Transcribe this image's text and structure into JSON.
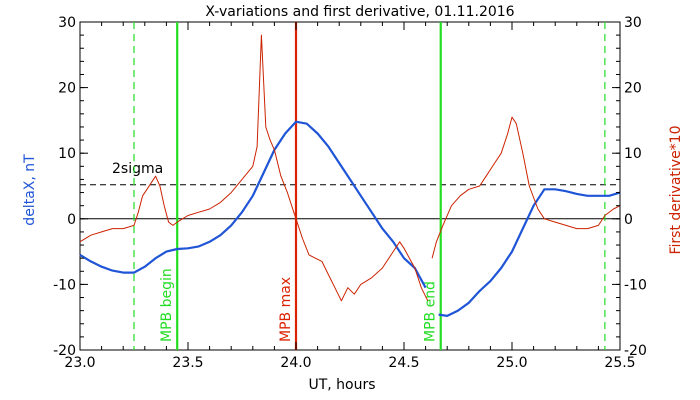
{
  "colors": {
    "background": "#ffffff",
    "axis": "#000000",
    "deltax": "#1f55d6",
    "derivative": "#cc2200",
    "mpb": "#22dd22",
    "mpb_max": "#dd2200"
  },
  "chart_data": {
    "type": "line",
    "title": "X-variations and first derivative, 01.11.2016",
    "xlabel": "UT, hours",
    "ylabel_left": "deltaX, nT",
    "ylabel_right": "First derivative*10",
    "xlim": [
      23.0,
      25.5
    ],
    "ylim": [
      -20,
      30
    ],
    "x_ticks": [
      "23.0",
      "23.5",
      "24.0",
      "24.5",
      "25.0",
      "25.5"
    ],
    "y_ticks": [
      "30",
      "20",
      "10",
      "0",
      "-10",
      "-20"
    ],
    "y_ticks_right": [
      "30",
      "20",
      "10",
      "0",
      "-10",
      "-20"
    ],
    "grid": false,
    "zero_line": 0,
    "threshold": {
      "label": "2sigma",
      "value": 5.2
    },
    "vertical_markers": [
      {
        "label": "",
        "x": 23.25,
        "style": "dashed",
        "color": "#22dd22"
      },
      {
        "label": "MPB begin",
        "x": 23.45,
        "style": "solid",
        "color": "#22dd22"
      },
      {
        "label": "MPB max",
        "x": 24.0,
        "style": "solid",
        "color": "#dd2200"
      },
      {
        "label": "MPB end",
        "x": 24.67,
        "style": "solid",
        "color": "#22dd22"
      },
      {
        "label": "",
        "x": 25.43,
        "style": "dashed",
        "color": "#22dd22"
      }
    ],
    "series": [
      {
        "name": "deltaX",
        "axis": "left",
        "color": "#1f55d6",
        "segments": [
          [
            [
              23.0,
              -5.5
            ],
            [
              23.05,
              -6.5
            ],
            [
              23.1,
              -7.3
            ],
            [
              23.15,
              -7.9
            ],
            [
              23.2,
              -8.2
            ],
            [
              23.25,
              -8.2
            ],
            [
              23.3,
              -7.3
            ],
            [
              23.35,
              -6.0
            ],
            [
              23.4,
              -5.0
            ],
            [
              23.45,
              -4.6
            ],
            [
              23.5,
              -4.5
            ],
            [
              23.55,
              -4.2
            ],
            [
              23.6,
              -3.5
            ],
            [
              23.65,
              -2.5
            ],
            [
              23.7,
              -1.0
            ],
            [
              23.75,
              1.0
            ],
            [
              23.8,
              3.5
            ],
            [
              23.85,
              7.0
            ],
            [
              23.9,
              10.5
            ],
            [
              23.95,
              13.0
            ],
            [
              24.0,
              14.8
            ],
            [
              24.05,
              14.5
            ],
            [
              24.1,
              13.0
            ],
            [
              24.15,
              11.0
            ],
            [
              24.2,
              8.5
            ],
            [
              24.25,
              6.0
            ],
            [
              24.3,
              3.5
            ],
            [
              24.35,
              1.0
            ],
            [
              24.4,
              -1.5
            ],
            [
              24.45,
              -3.5
            ],
            [
              24.5,
              -6.0
            ],
            [
              24.55,
              -7.5
            ],
            [
              24.6,
              -10.5
            ]
          ],
          [
            [
              24.66,
              -14.6
            ],
            [
              24.7,
              -14.8
            ],
            [
              24.75,
              -14.0
            ],
            [
              24.8,
              -12.8
            ],
            [
              24.85,
              -11.0
            ],
            [
              24.9,
              -9.5
            ],
            [
              24.95,
              -7.5
            ],
            [
              25.0,
              -5.0
            ],
            [
              25.05,
              -1.5
            ],
            [
              25.1,
              2.0
            ],
            [
              25.15,
              4.5
            ],
            [
              25.2,
              4.5
            ],
            [
              25.25,
              4.2
            ],
            [
              25.3,
              3.8
            ],
            [
              25.35,
              3.5
            ],
            [
              25.4,
              3.5
            ],
            [
              25.45,
              3.5
            ],
            [
              25.5,
              4.0
            ]
          ]
        ]
      },
      {
        "name": "First derivative*10",
        "axis": "right",
        "color": "#cc2200",
        "segments": [
          [
            [
              23.0,
              -3.5
            ],
            [
              23.05,
              -2.5
            ],
            [
              23.1,
              -2.0
            ],
            [
              23.15,
              -1.5
            ],
            [
              23.2,
              -1.5
            ],
            [
              23.25,
              -1.0
            ],
            [
              23.27,
              1.0
            ],
            [
              23.29,
              3.5
            ],
            [
              23.31,
              4.5
            ],
            [
              23.33,
              5.5
            ],
            [
              23.35,
              6.5
            ],
            [
              23.37,
              5.0
            ],
            [
              23.39,
              2.0
            ],
            [
              23.41,
              -0.5
            ],
            [
              23.43,
              -1.0
            ],
            [
              23.45,
              -0.5
            ],
            [
              23.5,
              0.5
            ],
            [
              23.55,
              1.0
            ],
            [
              23.6,
              1.5
            ],
            [
              23.65,
              2.5
            ],
            [
              23.7,
              4.0
            ],
            [
              23.75,
              6.0
            ],
            [
              23.8,
              8.0
            ],
            [
              23.82,
              11.0
            ],
            [
              23.84,
              28.0
            ],
            [
              23.86,
              14.0
            ],
            [
              23.88,
              12.0
            ],
            [
              23.9,
              10.5
            ],
            [
              23.93,
              6.5
            ],
            [
              23.96,
              4.0
            ],
            [
              23.99,
              1.0
            ],
            [
              24.0,
              0.0
            ],
            [
              24.03,
              -3.0
            ],
            [
              24.06,
              -5.5
            ],
            [
              24.09,
              -6.0
            ],
            [
              24.12,
              -6.5
            ],
            [
              24.15,
              -8.5
            ],
            [
              24.18,
              -10.5
            ],
            [
              24.21,
              -12.5
            ],
            [
              24.24,
              -10.5
            ],
            [
              24.27,
              -11.5
            ],
            [
              24.3,
              -10.0
            ],
            [
              24.35,
              -9.0
            ],
            [
              24.4,
              -7.5
            ],
            [
              24.45,
              -5.0
            ],
            [
              24.48,
              -3.5
            ],
            [
              24.5,
              -4.5
            ],
            [
              24.55,
              -7.5
            ],
            [
              24.58,
              -10.5
            ],
            [
              24.61,
              -12.5
            ]
          ],
          [
            [
              24.63,
              -6.0
            ],
            [
              24.65,
              -3.5
            ],
            [
              24.68,
              -1.0
            ],
            [
              24.72,
              2.0
            ],
            [
              24.76,
              3.5
            ],
            [
              24.8,
              4.5
            ],
            [
              24.85,
              5.0
            ],
            [
              24.88,
              6.5
            ],
            [
              24.92,
              8.5
            ],
            [
              24.95,
              10.0
            ],
            [
              24.98,
              13.0
            ],
            [
              25.0,
              15.5
            ],
            [
              25.02,
              14.5
            ],
            [
              25.05,
              10.0
            ],
            [
              25.08,
              5.0
            ],
            [
              25.12,
              1.5
            ],
            [
              25.15,
              0.0
            ],
            [
              25.2,
              -0.5
            ],
            [
              25.25,
              -1.0
            ],
            [
              25.3,
              -1.5
            ],
            [
              25.35,
              -1.5
            ],
            [
              25.4,
              -1.0
            ],
            [
              25.43,
              0.5
            ],
            [
              25.47,
              1.5
            ],
            [
              25.5,
              2.0
            ]
          ]
        ]
      }
    ]
  }
}
